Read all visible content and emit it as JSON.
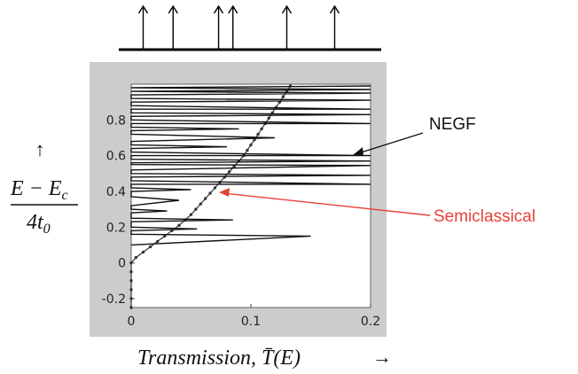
{
  "chart_data": {
    "type": "line",
    "xlim": [
      0,
      0.2
    ],
    "ylim": [
      -0.25,
      1.0
    ],
    "x_ticks": [
      "0",
      "0.1",
      "0.2"
    ],
    "y_ticks": [
      "-0.2",
      "0",
      "0.2",
      "0.4",
      "0.6",
      "0.8"
    ],
    "xlabel": "Transmission, T̄(E)",
    "ylabel_numerator": "E − E",
    "ylabel_numerator_sub": "c",
    "ylabel_denominator": "4t",
    "ylabel_denominator_sub": "0",
    "up_arrow": "↑",
    "right_arrow": "→",
    "series": [
      {
        "name": "Semiclassical",
        "color": "#333333",
        "markers": true,
        "points": [
          [
            0,
            -0.25
          ],
          [
            0,
            -0.2
          ],
          [
            0,
            -0.15
          ],
          [
            0,
            -0.1
          ],
          [
            0,
            -0.05
          ],
          [
            0,
            0
          ],
          [
            0.004,
            0.03
          ],
          [
            0.01,
            0.06
          ],
          [
            0.016,
            0.09
          ],
          [
            0.022,
            0.12
          ],
          [
            0.028,
            0.15
          ],
          [
            0.034,
            0.18
          ],
          [
            0.04,
            0.21
          ],
          [
            0.045,
            0.24
          ],
          [
            0.05,
            0.27
          ],
          [
            0.054,
            0.3
          ],
          [
            0.058,
            0.33
          ],
          [
            0.062,
            0.36
          ],
          [
            0.066,
            0.39
          ],
          [
            0.07,
            0.42
          ],
          [
            0.074,
            0.45
          ],
          [
            0.078,
            0.48
          ],
          [
            0.082,
            0.51
          ],
          [
            0.086,
            0.54
          ],
          [
            0.09,
            0.57
          ],
          [
            0.094,
            0.6
          ],
          [
            0.097,
            0.63
          ],
          [
            0.1,
            0.66
          ],
          [
            0.103,
            0.69
          ],
          [
            0.106,
            0.72
          ],
          [
            0.109,
            0.75
          ],
          [
            0.112,
            0.78
          ],
          [
            0.115,
            0.81
          ],
          [
            0.118,
            0.84
          ],
          [
            0.121,
            0.87
          ],
          [
            0.124,
            0.9
          ],
          [
            0.127,
            0.93
          ],
          [
            0.13,
            0.96
          ],
          [
            0.133,
            0.99
          ]
        ]
      },
      {
        "name": "NEGF",
        "color": "#111111",
        "markers": false,
        "points": [
          [
            0,
            0.1
          ],
          [
            0.15,
            0.15
          ],
          [
            0,
            0.16
          ],
          [
            0,
            0.18
          ],
          [
            0.055,
            0.19
          ],
          [
            0,
            0.2
          ],
          [
            0,
            0.23
          ],
          [
            0.085,
            0.24
          ],
          [
            0,
            0.25
          ],
          [
            0,
            0.28
          ],
          [
            0.03,
            0.29
          ],
          [
            0,
            0.3
          ],
          [
            0,
            0.32
          ],
          [
            0.04,
            0.35
          ],
          [
            0,
            0.37
          ],
          [
            0,
            0.4
          ],
          [
            0.05,
            0.41
          ],
          [
            0,
            0.42
          ],
          [
            0,
            0.44
          ],
          [
            0.2,
            0.44
          ],
          [
            0,
            0.46
          ],
          [
            0,
            0.48
          ],
          [
            0.2,
            0.49
          ],
          [
            0,
            0.5
          ],
          [
            0,
            0.52
          ],
          [
            0.2,
            0.545
          ],
          [
            0,
            0.55
          ],
          [
            0,
            0.56
          ],
          [
            0.2,
            0.57
          ],
          [
            0,
            0.58
          ],
          [
            0,
            0.6
          ],
          [
            0.2,
            0.6
          ],
          [
            0,
            0.62
          ],
          [
            0,
            0.64
          ],
          [
            0.08,
            0.65
          ],
          [
            0,
            0.66
          ],
          [
            0,
            0.68
          ],
          [
            0.12,
            0.7
          ],
          [
            0,
            0.72
          ],
          [
            0,
            0.74
          ],
          [
            0.09,
            0.75
          ],
          [
            0,
            0.76
          ],
          [
            0,
            0.78
          ],
          [
            0.2,
            0.78
          ],
          [
            0,
            0.8
          ],
          [
            0,
            0.82
          ],
          [
            0.2,
            0.83
          ],
          [
            0,
            0.84
          ],
          [
            0,
            0.86
          ],
          [
            0.2,
            0.86
          ],
          [
            0,
            0.88
          ],
          [
            0,
            0.9
          ],
          [
            0.2,
            0.91
          ],
          [
            0,
            0.92
          ],
          [
            0,
            0.94
          ],
          [
            0.2,
            0.95
          ],
          [
            0,
            0.96
          ],
          [
            0.2,
            0.97
          ],
          [
            0,
            0.98
          ],
          [
            0.2,
            0.99
          ]
        ]
      }
    ],
    "annotations": [
      {
        "text": "NEGF",
        "color": "#111111",
        "target": [
          0.19,
          0.57
        ]
      },
      {
        "text": "Semiclassical",
        "color": "#e8413a",
        "target": [
          0.065,
          0.38
        ]
      }
    ],
    "level_arrows_x": [
      0.01,
      0.035,
      0.073,
      0.085,
      0.13,
      0.17
    ]
  }
}
